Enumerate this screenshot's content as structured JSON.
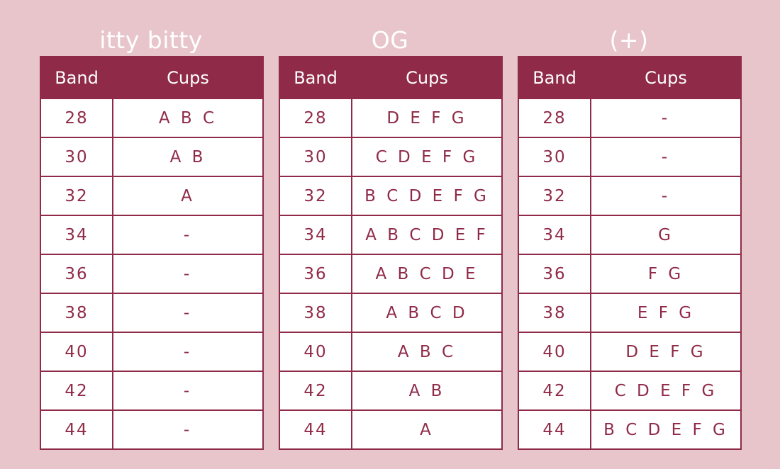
{
  "header_labels": {
    "band": "Band",
    "cups": "Cups"
  },
  "groups": [
    {
      "title": "itty bitty",
      "rows": [
        {
          "band": "28",
          "cups": "A B C"
        },
        {
          "band": "30",
          "cups": "A B"
        },
        {
          "band": "32",
          "cups": "A"
        },
        {
          "band": "34",
          "cups": "-"
        },
        {
          "band": "36",
          "cups": "-"
        },
        {
          "band": "38",
          "cups": "-"
        },
        {
          "band": "40",
          "cups": "-"
        },
        {
          "band": "42",
          "cups": "-"
        },
        {
          "band": "44",
          "cups": "-"
        }
      ]
    },
    {
      "title": "OG",
      "rows": [
        {
          "band": "28",
          "cups": "D E F G"
        },
        {
          "band": "30",
          "cups": "C D E F G"
        },
        {
          "band": "32",
          "cups": "B C D E F G"
        },
        {
          "band": "34",
          "cups": "A B C D E F"
        },
        {
          "band": "36",
          "cups": "A B C D E"
        },
        {
          "band": "38",
          "cups": "A B C D"
        },
        {
          "band": "40",
          "cups": "A B C"
        },
        {
          "band": "42",
          "cups": "A B"
        },
        {
          "band": "44",
          "cups": "A"
        }
      ]
    },
    {
      "title": "(+)",
      "rows": [
        {
          "band": "28",
          "cups": "-"
        },
        {
          "band": "30",
          "cups": "-"
        },
        {
          "band": "32",
          "cups": "-"
        },
        {
          "band": "34",
          "cups": "G"
        },
        {
          "band": "36",
          "cups": "F G"
        },
        {
          "band": "38",
          "cups": "E F G"
        },
        {
          "band": "40",
          "cups": "D E F G"
        },
        {
          "band": "42",
          "cups": "C D E F G"
        },
        {
          "band": "44",
          "cups": "B C D E F G"
        }
      ]
    }
  ],
  "colors": {
    "background": "#e8c5cb",
    "header_fill": "#8f2a48",
    "cell_text": "#8f2a48",
    "title_text": "#ffffff"
  }
}
